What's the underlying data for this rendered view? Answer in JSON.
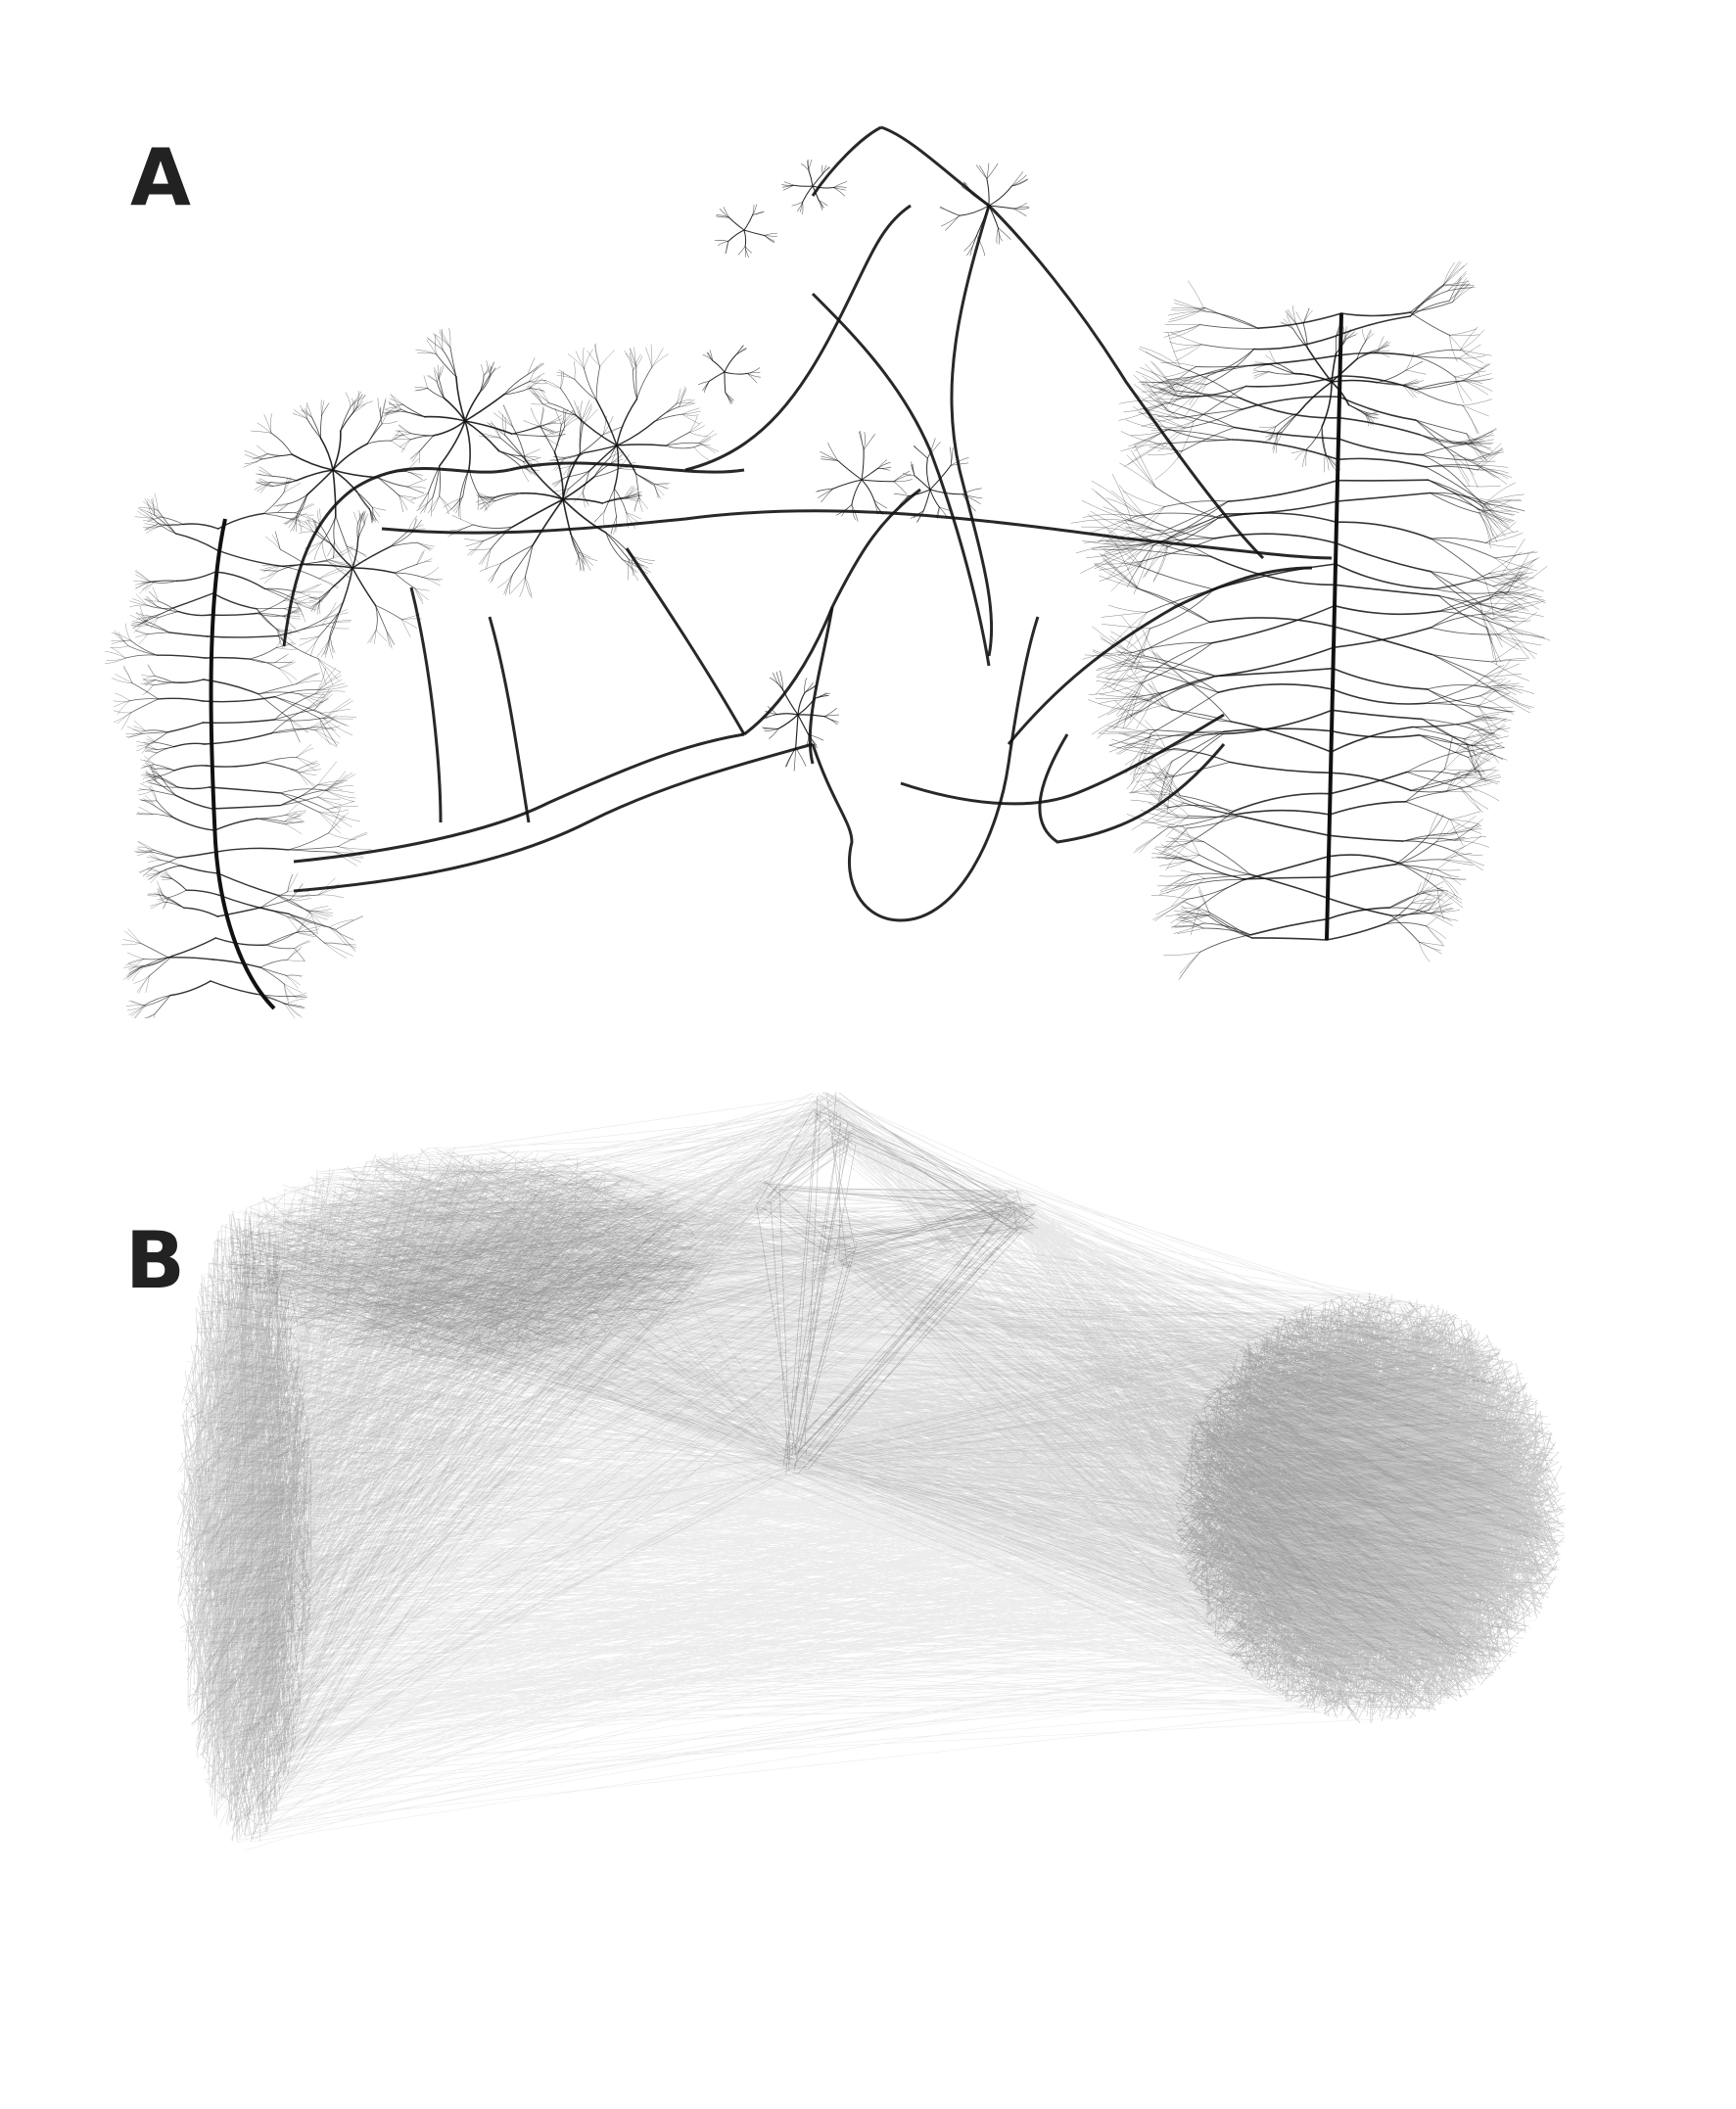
{
  "panels": [
    {
      "label": "A",
      "style": "edge-bundled network layout (tree-like bundles)"
    },
    {
      "label": "B",
      "style": "straight-line network layout (hairball)"
    }
  ],
  "colors": {
    "background": "#ffffff",
    "label": "#222222",
    "edge": "#111111"
  }
}
